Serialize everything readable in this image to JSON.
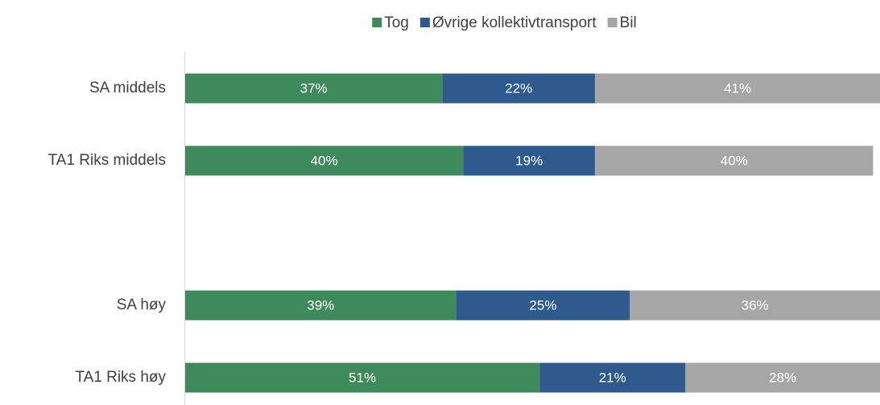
{
  "chart_data": {
    "type": "stacked-bar-horizontal",
    "categories": [
      "SA middels",
      "TA1 Riks middels",
      null,
      "SA høy",
      "TA1 Riks høy"
    ],
    "series": [
      {
        "name": "Tog",
        "color": "#3e8a5b",
        "values": [
          37,
          40,
          null,
          39,
          51
        ],
        "value_labels": [
          "37%",
          "40%",
          null,
          "39%",
          "51%"
        ]
      },
      {
        "name": "Øvrige kollektivtransport",
        "color": "#2f5a8e",
        "values": [
          22,
          19,
          null,
          25,
          21
        ],
        "value_labels": [
          "22%",
          "19%",
          null,
          "25%",
          "21%"
        ]
      },
      {
        "name": "Bil",
        "color": "#a6a6a6",
        "values": [
          41,
          40,
          null,
          36,
          28
        ],
        "value_labels": [
          "41%",
          "40%",
          null,
          "36%",
          "28%"
        ]
      }
    ],
    "xlim": [
      0,
      100
    ],
    "legend": "top"
  }
}
